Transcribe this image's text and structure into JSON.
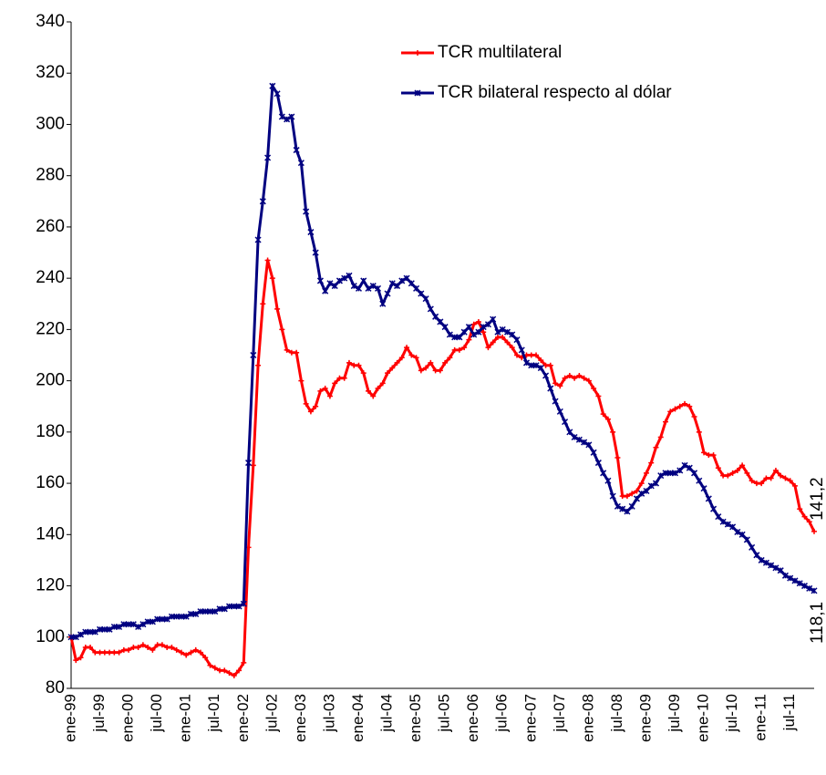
{
  "chart_data": {
    "type": "line",
    "categories": [
      "ene-99",
      null,
      null,
      null,
      null,
      null,
      "jul-99",
      null,
      null,
      null,
      null,
      null,
      "ene-00",
      null,
      null,
      null,
      null,
      null,
      "jul-00",
      null,
      null,
      null,
      null,
      null,
      "ene-01",
      null,
      null,
      null,
      null,
      null,
      "jul-01",
      null,
      null,
      null,
      null,
      null,
      "ene-02",
      null,
      null,
      null,
      null,
      null,
      "jul-02",
      null,
      null,
      null,
      null,
      null,
      "ene-03",
      null,
      null,
      null,
      null,
      null,
      "jul-03",
      null,
      null,
      null,
      null,
      null,
      "ene-04",
      null,
      null,
      null,
      null,
      null,
      "jul-04",
      null,
      null,
      null,
      null,
      null,
      "ene-05",
      null,
      null,
      null,
      null,
      null,
      "jul-05",
      null,
      null,
      null,
      null,
      null,
      "ene-06",
      null,
      null,
      null,
      null,
      null,
      "jul-06",
      null,
      null,
      null,
      null,
      null,
      "ene-07",
      null,
      null,
      null,
      null,
      null,
      "jul-07",
      null,
      null,
      null,
      null,
      null,
      "ene-08",
      null,
      null,
      null,
      null,
      null,
      "jul-08",
      null,
      null,
      null,
      null,
      null,
      "ene-09",
      null,
      null,
      null,
      null,
      null,
      "jul-09",
      null,
      null,
      null,
      null,
      null,
      "ene-10",
      null,
      null,
      null,
      null,
      null,
      "jul-10",
      null,
      null,
      null,
      null,
      null,
      "ene-11",
      null,
      null,
      null,
      null,
      null,
      "jul-11",
      null,
      null,
      null,
      null,
      null
    ],
    "series": [
      {
        "name": "TCR multilateral",
        "color": "#ff0000",
        "marker": "plus",
        "values": [
          100,
          91,
          92,
          96,
          96,
          94,
          94,
          94,
          94,
          94,
          94,
          95,
          95,
          96,
          96,
          97,
          96,
          95,
          97,
          97,
          96,
          96,
          95,
          94,
          93,
          94,
          95,
          94,
          92,
          89,
          88,
          87,
          87,
          86,
          85,
          87,
          90,
          135,
          167,
          206,
          230,
          247,
          240,
          228,
          220,
          212,
          211,
          211,
          200,
          191,
          188,
          190,
          196,
          197,
          194,
          199,
          201,
          201,
          207,
          206,
          206,
          203,
          196,
          194,
          197,
          199,
          203,
          205,
          207,
          209,
          213,
          210,
          209,
          204,
          205,
          207,
          204,
          204,
          207,
          209,
          212,
          212,
          213,
          216,
          222,
          223,
          219,
          213,
          215,
          217,
          217,
          215,
          213,
          210,
          209,
          210,
          210,
          210,
          208,
          206,
          206,
          199,
          198,
          201,
          202,
          201,
          202,
          201,
          200,
          197,
          194,
          187,
          185,
          180,
          170,
          155,
          155,
          156,
          157,
          160,
          164,
          168,
          174,
          178,
          184,
          188,
          189,
          190,
          191,
          190,
          186,
          180,
          172,
          171,
          171,
          166,
          163,
          163,
          164,
          165,
          167,
          164,
          161,
          160,
          160,
          162,
          162,
          165,
          163,
          162,
          161,
          159,
          150,
          147,
          145,
          141.2
        ],
        "value_labels": [
          null,
          null,
          null,
          null,
          null,
          null,
          null,
          null,
          null,
          null,
          null,
          null,
          null,
          null,
          null,
          null,
          null,
          null,
          null,
          null,
          null,
          null,
          null,
          null,
          null,
          null,
          null,
          null,
          null,
          null,
          null,
          null,
          null,
          null,
          null,
          null,
          null,
          null,
          null,
          null,
          null,
          null,
          null,
          null,
          null,
          null,
          null,
          null,
          null,
          null,
          null,
          null,
          null,
          null,
          null,
          null,
          null,
          null,
          null,
          null,
          null,
          null,
          null,
          null,
          null,
          null,
          null,
          null,
          null,
          null,
          null,
          null,
          null,
          null,
          null,
          null,
          null,
          null,
          null,
          null,
          null,
          null,
          null,
          null,
          null,
          null,
          null,
          null,
          null,
          null,
          null,
          null,
          null,
          null,
          null,
          null,
          null,
          null,
          null,
          null,
          null,
          null,
          null,
          null,
          null,
          null,
          null,
          null,
          null,
          null,
          null,
          null,
          null,
          null,
          null,
          null,
          null,
          null,
          null,
          null,
          null,
          null,
          null,
          null,
          null,
          null,
          null,
          null,
          null,
          null,
          null,
          null,
          null,
          null,
          null,
          null,
          null,
          null,
          null,
          null,
          null,
          null,
          null,
          null,
          null,
          null,
          null,
          null,
          null,
          null,
          null,
          null,
          null,
          null,
          null,
          "141,2"
        ]
      },
      {
        "name": "TCR bilateral respecto al dólar",
        "color": "#000080",
        "marker": "x",
        "values": [
          100,
          100,
          101,
          102,
          102,
          102,
          103,
          103,
          103,
          104,
          104,
          105,
          105,
          105,
          104,
          105,
          106,
          106,
          107,
          107,
          107,
          108,
          108,
          108,
          108,
          109,
          109,
          110,
          110,
          110,
          110,
          111,
          111,
          112,
          112,
          112,
          113,
          168,
          210,
          255,
          270,
          287,
          315,
          312,
          303,
          302,
          303,
          290,
          285,
          266,
          258,
          250,
          239,
          235,
          238,
          237,
          239,
          240,
          241,
          237,
          236,
          239,
          236,
          237,
          236,
          230,
          234,
          238,
          237,
          239,
          240,
          238,
          236,
          234,
          232,
          228,
          225,
          223,
          221,
          218,
          217,
          217,
          219,
          221,
          218,
          219,
          221,
          222,
          224,
          219,
          220,
          219,
          218,
          216,
          212,
          207,
          206,
          206,
          205,
          202,
          197,
          192,
          188,
          184,
          180,
          178,
          177,
          176,
          175,
          172,
          168,
          164,
          161,
          155,
          151,
          150,
          149,
          151,
          154,
          156,
          157,
          159,
          160,
          163,
          164,
          164,
          164,
          165,
          167,
          166,
          164,
          161,
          158,
          154,
          150,
          147,
          145,
          144,
          143,
          141,
          140,
          138,
          135,
          132,
          130,
          129,
          128,
          127,
          126,
          124,
          123,
          122,
          121,
          120,
          119,
          118.1
        ],
        "value_labels": [
          null,
          null,
          null,
          null,
          null,
          null,
          null,
          null,
          null,
          null,
          null,
          null,
          null,
          null,
          null,
          null,
          null,
          null,
          null,
          null,
          null,
          null,
          null,
          null,
          null,
          null,
          null,
          null,
          null,
          null,
          null,
          null,
          null,
          null,
          null,
          null,
          null,
          null,
          null,
          null,
          null,
          null,
          null,
          null,
          null,
          null,
          null,
          null,
          null,
          null,
          null,
          null,
          null,
          null,
          null,
          null,
          null,
          null,
          null,
          null,
          null,
          null,
          null,
          null,
          null,
          null,
          null,
          null,
          null,
          null,
          null,
          null,
          null,
          null,
          null,
          null,
          null,
          null,
          null,
          null,
          null,
          null,
          null,
          null,
          null,
          null,
          null,
          null,
          null,
          null,
          null,
          null,
          null,
          null,
          null,
          null,
          null,
          null,
          null,
          null,
          null,
          null,
          null,
          null,
          null,
          null,
          null,
          null,
          null,
          null,
          null,
          null,
          null,
          null,
          null,
          null,
          null,
          null,
          null,
          null,
          null,
          null,
          null,
          null,
          null,
          null,
          null,
          null,
          null,
          null,
          null,
          null,
          null,
          null,
          null,
          null,
          null,
          null,
          null,
          null,
          null,
          null,
          null,
          null,
          null,
          null,
          null,
          null,
          null,
          null,
          null,
          null,
          null,
          null,
          null,
          "118,1"
        ]
      }
    ],
    "ylim": [
      80,
      340
    ],
    "yticks": [
      80,
      100,
      120,
      140,
      160,
      180,
      200,
      220,
      240,
      260,
      280,
      300,
      320,
      340
    ],
    "grid": false,
    "legend": "top-right"
  }
}
